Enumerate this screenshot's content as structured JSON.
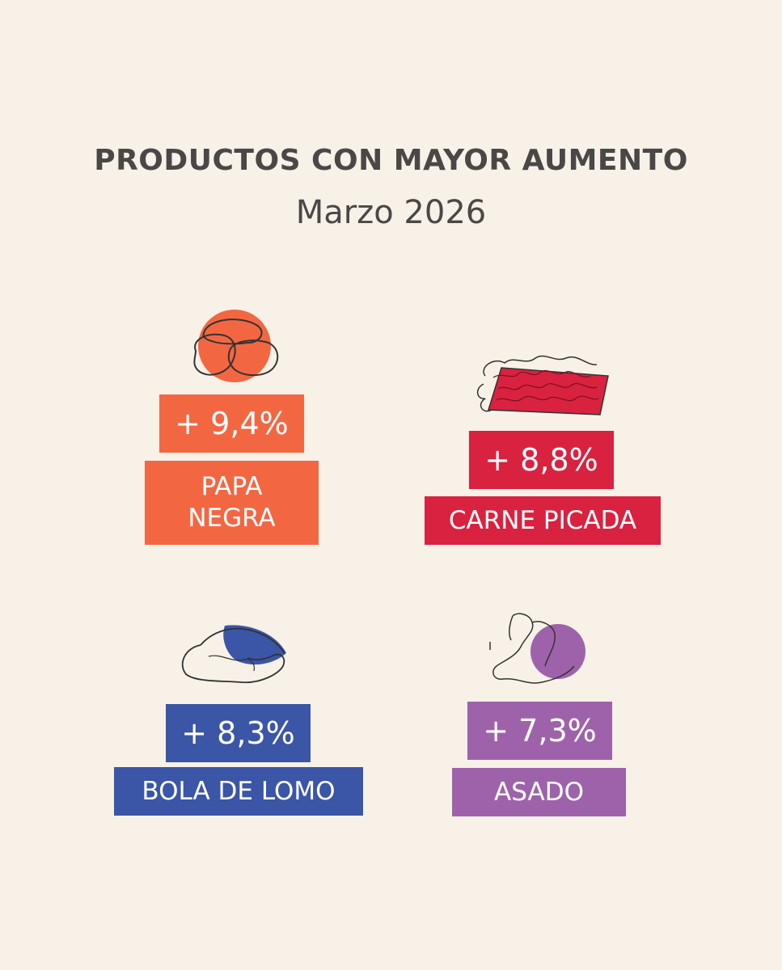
{
  "header": {
    "title": "PRODUCTOS CON MAYOR AUMENTO",
    "subtitle": "Marzo 2026"
  },
  "products": [
    {
      "change": "+ 9,4%",
      "name": "PAPA\nNEGRA",
      "icon": "potato-icon",
      "color": "#f26742"
    },
    {
      "change": "+ 8,8%",
      "name": "CARNE PICADA",
      "icon": "ground-meat-icon",
      "color": "#d92240"
    },
    {
      "change": "+ 8,3%",
      "name": "BOLA DE LOMO",
      "icon": "beef-round-icon",
      "color": "#3b55a7"
    },
    {
      "change": "+ 7,3%",
      "name": "ASADO",
      "icon": "ribs-icon",
      "color": "#9e62aa"
    }
  ]
}
